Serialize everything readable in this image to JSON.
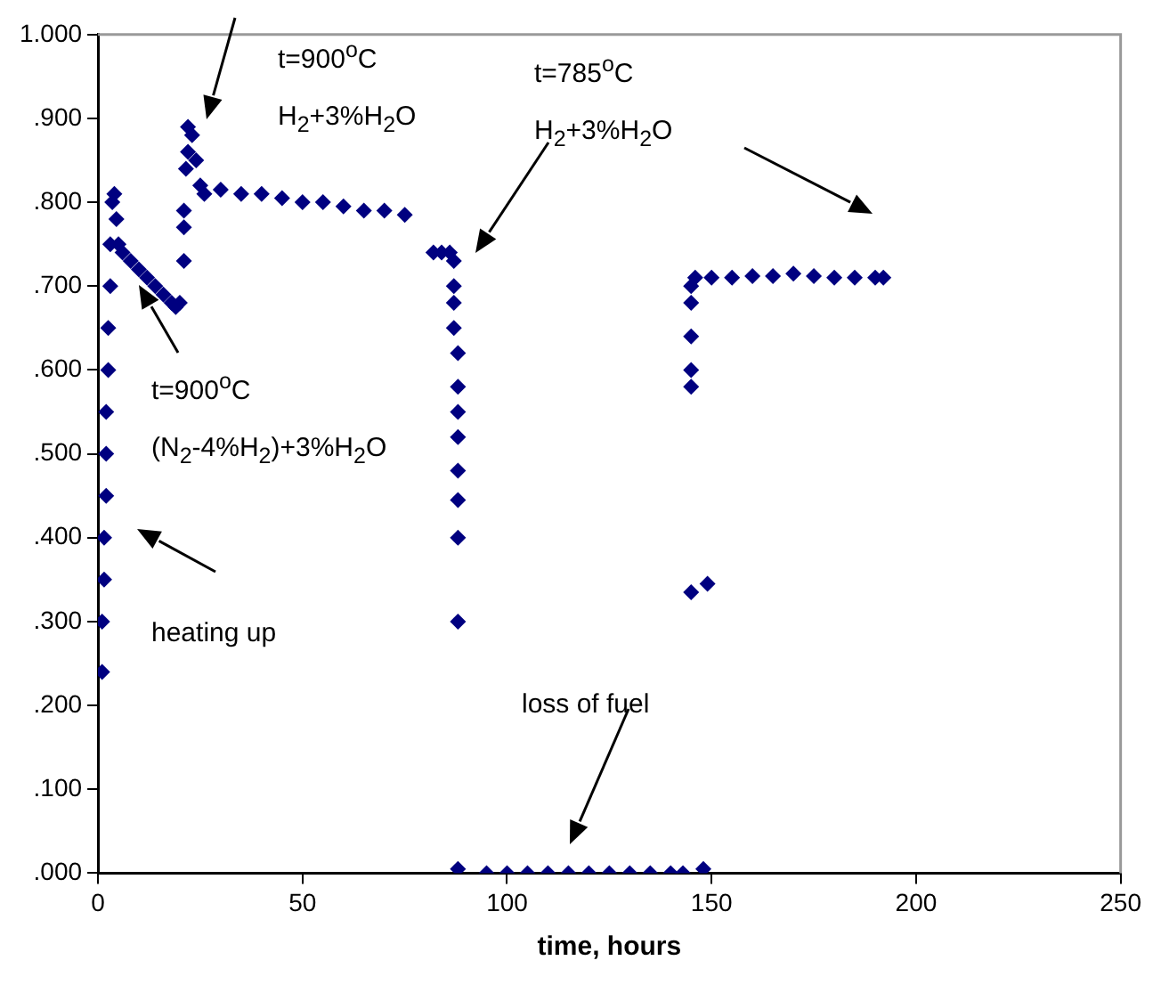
{
  "chart_data": {
    "type": "scatter",
    "xlabel": "time, hours",
    "marker": "diamond",
    "color": "#000080",
    "x": [
      1,
      1,
      1.5,
      1.5,
      2,
      2,
      2,
      2.5,
      2.5,
      3,
      3,
      3.5,
      4,
      4.5,
      5,
      6,
      8,
      10,
      12,
      14,
      16,
      18,
      19,
      20,
      21,
      21,
      21,
      21.5,
      22,
      22,
      23,
      24,
      25,
      26,
      30,
      35,
      40,
      45,
      50,
      55,
      60,
      65,
      70,
      75,
      82,
      84,
      86,
      87,
      87,
      87,
      87,
      88,
      88,
      88,
      88,
      88,
      88,
      88,
      88,
      88,
      95,
      100,
      105,
      110,
      115,
      120,
      125,
      130,
      135,
      140,
      143,
      148,
      145,
      149,
      145,
      145,
      145,
      145,
      145,
      146,
      150,
      155,
      160,
      165,
      170,
      175,
      180,
      185,
      190,
      192
    ],
    "values": [
      0.24,
      0.3,
      0.35,
      0.4,
      0.45,
      0.5,
      0.55,
      0.6,
      0.65,
      0.7,
      0.75,
      0.8,
      0.81,
      0.78,
      0.75,
      0.74,
      0.73,
      0.72,
      0.71,
      0.7,
      0.69,
      0.68,
      0.675,
      0.68,
      0.73,
      0.77,
      0.79,
      0.84,
      0.86,
      0.89,
      0.88,
      0.85,
      0.82,
      0.81,
      0.815,
      0.81,
      0.81,
      0.805,
      0.8,
      0.8,
      0.795,
      0.79,
      0.79,
      0.785,
      0.74,
      0.74,
      0.74,
      0.73,
      0.7,
      0.68,
      0.65,
      0.62,
      0.58,
      0.55,
      0.52,
      0.48,
      0.445,
      0.4,
      0.3,
      0.005,
      0,
      0,
      0,
      0,
      0,
      0,
      0,
      0,
      0,
      0,
      0,
      0.005,
      0.335,
      0.345,
      0.58,
      0.6,
      0.64,
      0.68,
      0.7,
      0.71,
      0.71,
      0.71,
      0.712,
      0.712,
      0.715,
      0.712,
      0.71,
      0.71,
      0.71,
      0.71
    ],
    "xlim": [
      0,
      250
    ],
    "xticks": [
      0,
      50,
      100,
      150,
      200,
      250
    ],
    "ylim": [
      0,
      1
    ],
    "yticks": [
      {
        "value": 0,
        "label": ".000"
      },
      {
        "value": 0.1,
        "label": ".100"
      },
      {
        "value": 0.2,
        "label": ".200"
      },
      {
        "value": 0.3,
        "label": ".300"
      },
      {
        "value": 0.4,
        "label": ".400"
      },
      {
        "value": 0.5,
        "label": ".500"
      },
      {
        "value": 0.6,
        "label": ".600"
      },
      {
        "value": 0.7,
        "label": ".700"
      },
      {
        "value": 0.8,
        "label": ".800"
      },
      {
        "value": 0.9,
        "label": ".900"
      },
      {
        "value": 1,
        "label": "1.000"
      }
    ],
    "grid": false,
    "legend": false,
    "annotations": [
      "t=900$^{o}$C\nH$_{2}$+3%H$_{2}$O",
      "t=900$^{o}$C\n(N$_{2}$-4%H$_{2}$)+3%H$_{2}$O",
      "heating up",
      "t=785$^{o}$C\nH$_{2}$+3%H$_{2}$O",
      "loss of fuel"
    ]
  }
}
